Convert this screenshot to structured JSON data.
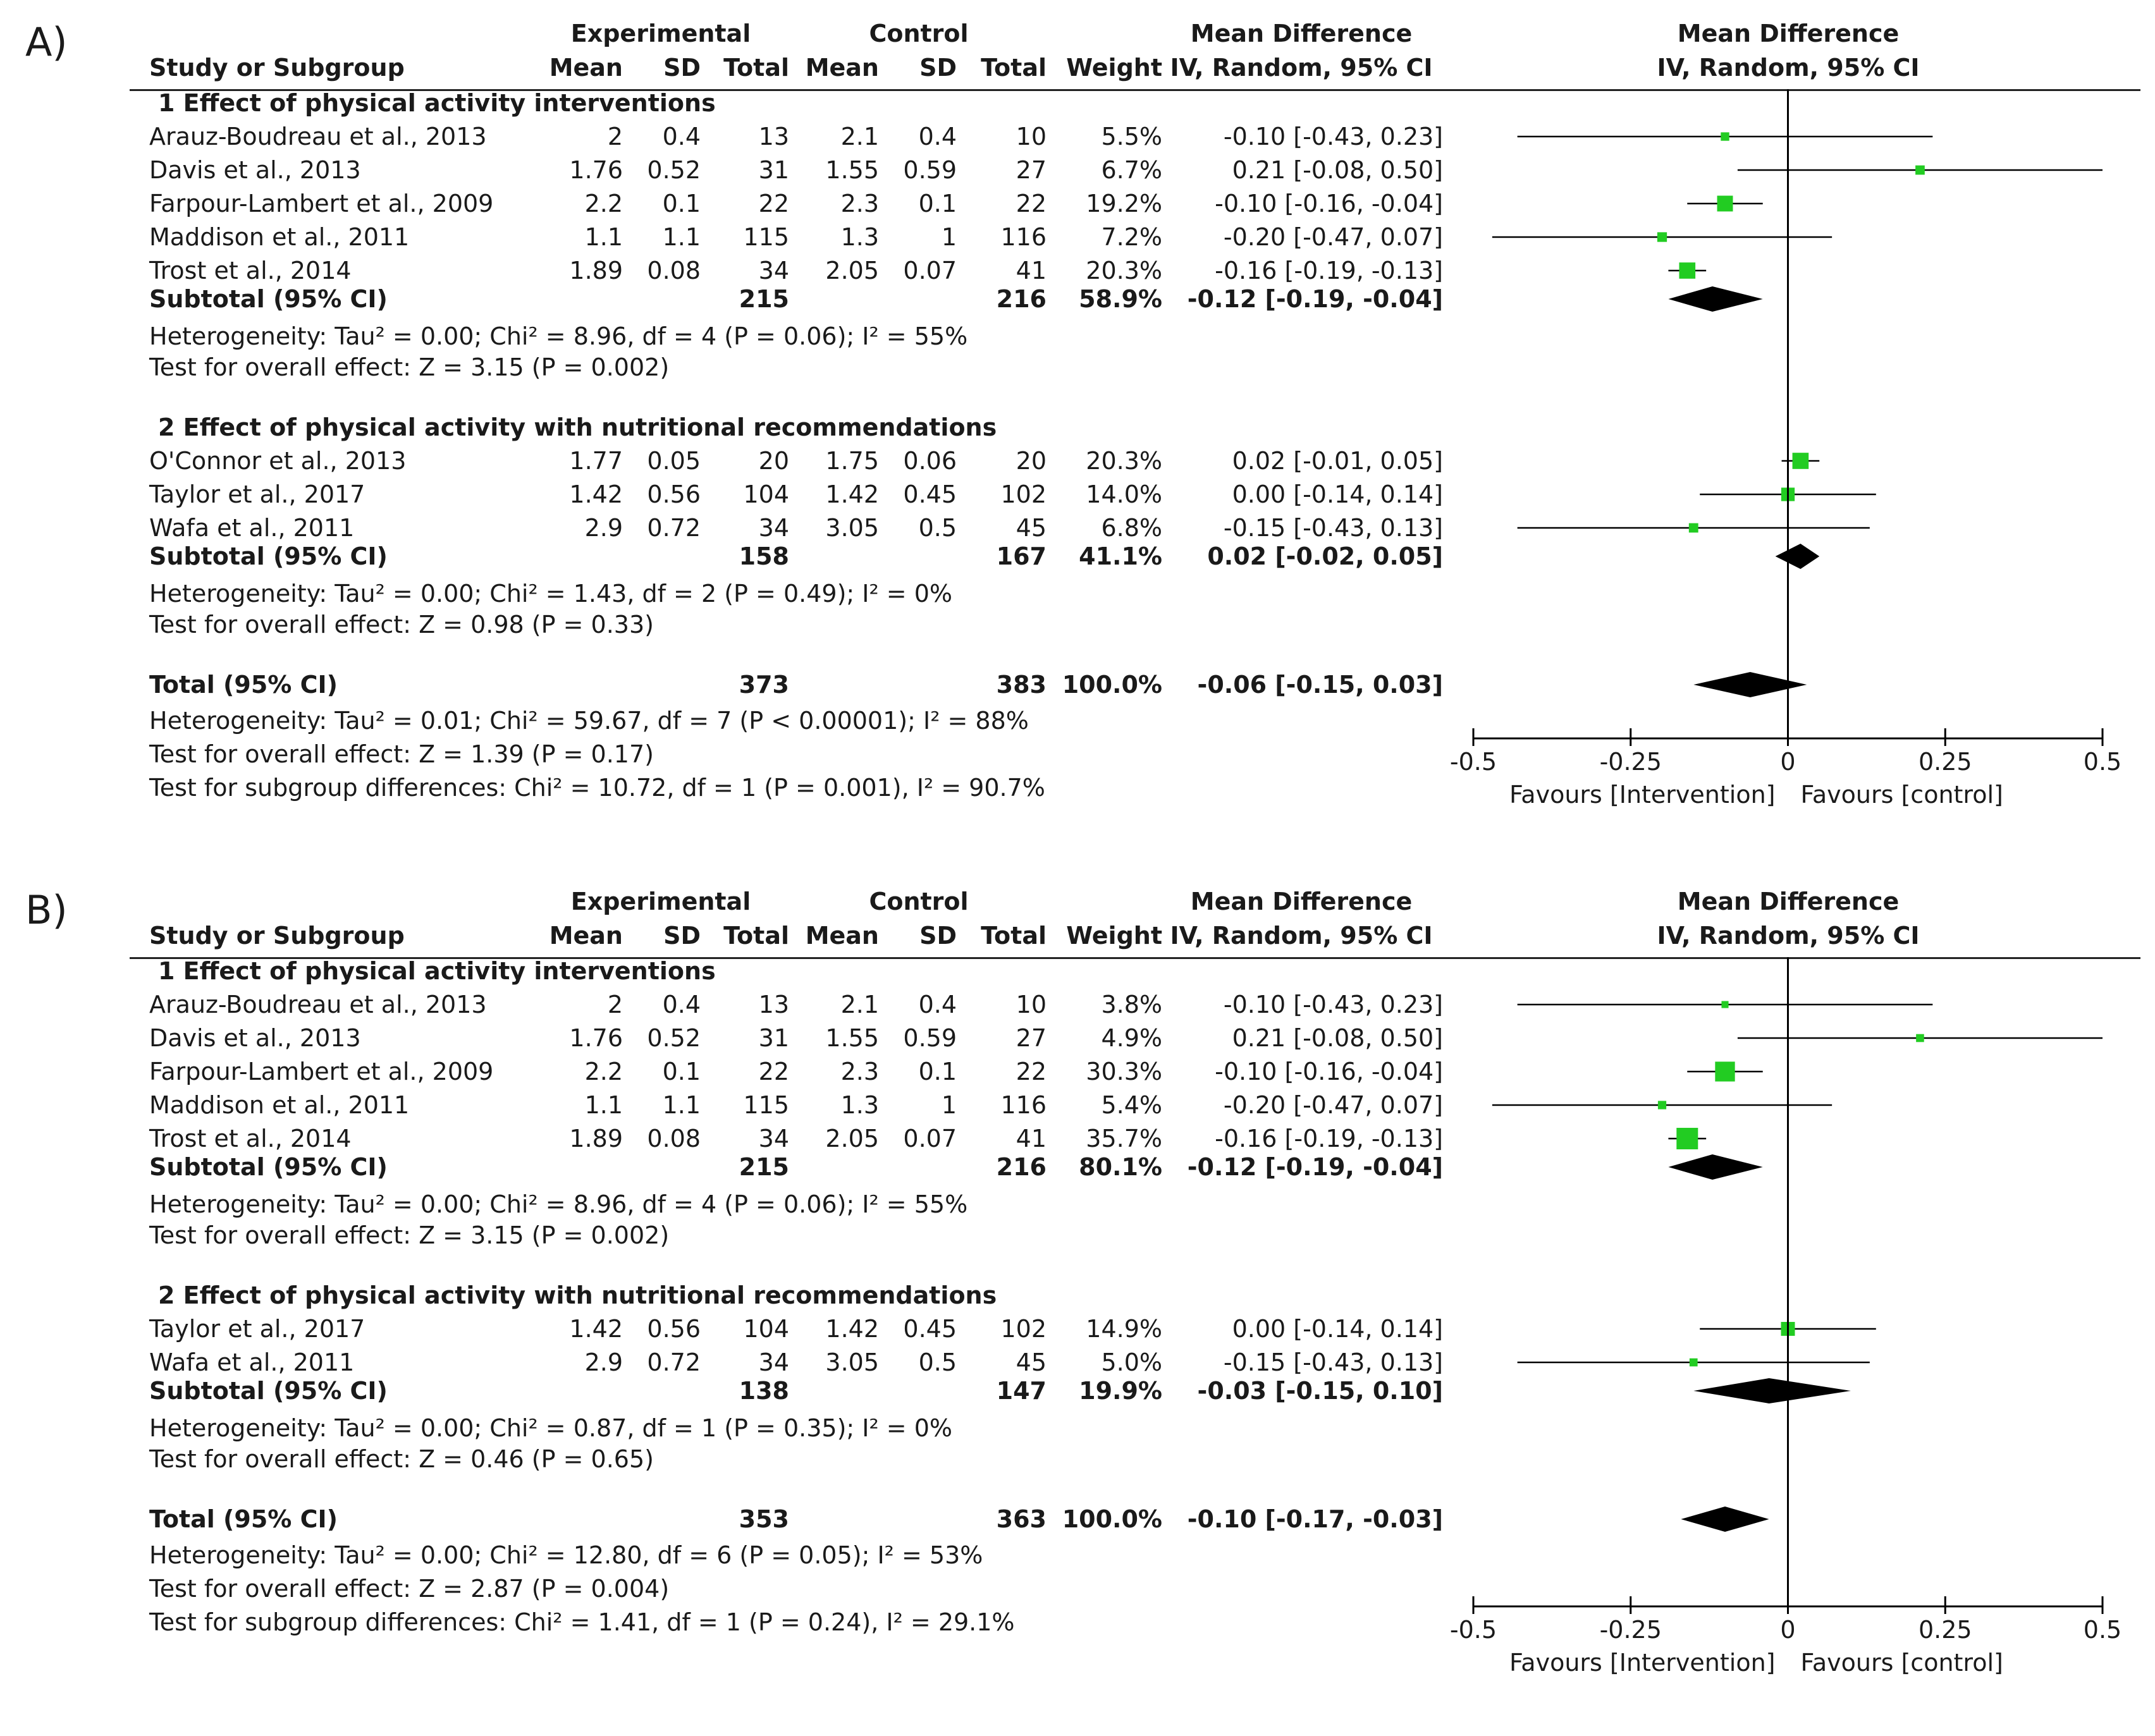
{
  "headers": {
    "study": "Study or Subgroup",
    "experimental": "Experimental",
    "control": "Control",
    "mean": "Mean",
    "sd": "SD",
    "total": "Total",
    "weight": "Weight",
    "md": "Mean Difference",
    "md_method": "IV, Random, 95% CI"
  },
  "colors": {
    "marker": "#22cc22",
    "diamond": "#000000",
    "ci": "#000000"
  },
  "chart_data": [
    {
      "type": "forest",
      "panel_label": "A)",
      "x_axis": {
        "min": -0.5,
        "max": 0.5,
        "ticks": [
          -0.5,
          -0.25,
          0,
          0.25,
          0.5
        ],
        "tick_labels": [
          "-0.5",
          "-0.25",
          "0",
          "0.25",
          "0.5"
        ],
        "left_label": "Favours [Intervention]",
        "right_label": "Favours [control]"
      },
      "subgroups": [
        {
          "title": "1 Effect of physical activity interventions",
          "studies": [
            {
              "name": "Arauz-Boudreau et al., 2013",
              "exp_mean": "2",
              "exp_sd": "0.4",
              "exp_total": "13",
              "ctl_mean": "2.1",
              "ctl_sd": "0.4",
              "ctl_total": "10",
              "weight": "5.5%",
              "ci_text": "-0.10 [-0.43, 0.23]",
              "md": -0.1,
              "lo": -0.43,
              "hi": 0.23,
              "w": 5.5
            },
            {
              "name": "Davis et al., 2013",
              "exp_mean": "1.76",
              "exp_sd": "0.52",
              "exp_total": "31",
              "ctl_mean": "1.55",
              "ctl_sd": "0.59",
              "ctl_total": "27",
              "weight": "6.7%",
              "ci_text": "0.21 [-0.08, 0.50]",
              "md": 0.21,
              "lo": -0.08,
              "hi": 0.5,
              "w": 6.7
            },
            {
              "name": "Farpour-Lambert et al., 2009",
              "exp_mean": "2.2",
              "exp_sd": "0.1",
              "exp_total": "22",
              "ctl_mean": "2.3",
              "ctl_sd": "0.1",
              "ctl_total": "22",
              "weight": "19.2%",
              "ci_text": "-0.10 [-0.16, -0.04]",
              "md": -0.1,
              "lo": -0.16,
              "hi": -0.04,
              "w": 19.2
            },
            {
              "name": "Maddison et al., 2011",
              "exp_mean": "1.1",
              "exp_sd": "1.1",
              "exp_total": "115",
              "ctl_mean": "1.3",
              "ctl_sd": "1",
              "ctl_total": "116",
              "weight": "7.2%",
              "ci_text": "-0.20 [-0.47, 0.07]",
              "md": -0.2,
              "lo": -0.47,
              "hi": 0.07,
              "w": 7.2
            },
            {
              "name": "Trost et al., 2014",
              "exp_mean": "1.89",
              "exp_sd": "0.08",
              "exp_total": "34",
              "ctl_mean": "2.05",
              "ctl_sd": "0.07",
              "ctl_total": "41",
              "weight": "20.3%",
              "ci_text": "-0.16 [-0.19, -0.13]",
              "md": -0.16,
              "lo": -0.19,
              "hi": -0.13,
              "w": 20.3
            }
          ],
          "subtotal": {
            "label": "Subtotal (95% CI)",
            "exp_total": "215",
            "ctl_total": "216",
            "weight": "58.9%",
            "ci_text": "-0.12 [-0.19, -0.04]",
            "md": -0.12,
            "lo": -0.19,
            "hi": -0.04
          },
          "heterogeneity": "Heterogeneity: Tau² = 0.00; Chi² = 8.96, df = 4 (P = 0.06); I² = 55%",
          "overall_effect": "Test for overall effect: Z = 3.15 (P = 0.002)"
        },
        {
          "title": "2 Effect of physical activity with nutritional recommendations",
          "studies": [
            {
              "name": "O'Connor et al., 2013",
              "exp_mean": "1.77",
              "exp_sd": "0.05",
              "exp_total": "20",
              "ctl_mean": "1.75",
              "ctl_sd": "0.06",
              "ctl_total": "20",
              "weight": "20.3%",
              "ci_text": "0.02 [-0.01, 0.05]",
              "md": 0.02,
              "lo": -0.01,
              "hi": 0.05,
              "w": 20.3
            },
            {
              "name": "Taylor et al., 2017",
              "exp_mean": "1.42",
              "exp_sd": "0.56",
              "exp_total": "104",
              "ctl_mean": "1.42",
              "ctl_sd": "0.45",
              "ctl_total": "102",
              "weight": "14.0%",
              "ci_text": "0.00 [-0.14, 0.14]",
              "md": 0.0,
              "lo": -0.14,
              "hi": 0.14,
              "w": 14.0
            },
            {
              "name": "Wafa et al., 2011",
              "exp_mean": "2.9",
              "exp_sd": "0.72",
              "exp_total": "34",
              "ctl_mean": "3.05",
              "ctl_sd": "0.5",
              "ctl_total": "45",
              "weight": "6.8%",
              "ci_text": "-0.15 [-0.43, 0.13]",
              "md": -0.15,
              "lo": -0.43,
              "hi": 0.13,
              "w": 6.8
            }
          ],
          "subtotal": {
            "label": "Subtotal (95% CI)",
            "exp_total": "158",
            "ctl_total": "167",
            "weight": "41.1%",
            "ci_text": "0.02 [-0.02, 0.05]",
            "md": 0.02,
            "lo": -0.02,
            "hi": 0.05
          },
          "heterogeneity": "Heterogeneity: Tau² = 0.00; Chi² = 1.43, df = 2 (P = 0.49); I² = 0%",
          "overall_effect": "Test for overall effect: Z = 0.98 (P = 0.33)"
        }
      ],
      "total": {
        "label": "Total (95% CI)",
        "exp_total": "373",
        "ctl_total": "383",
        "weight": "100.0%",
        "ci_text": "-0.06 [-0.15, 0.03]",
        "md": -0.06,
        "lo": -0.15,
        "hi": 0.03
      },
      "footer": [
        "Heterogeneity: Tau² = 0.01; Chi² = 59.67, df = 7 (P < 0.00001); I² = 88%",
        "Test for overall effect: Z = 1.39 (P = 0.17)",
        "Test for subgroup differences: Chi² = 10.72, df = 1 (P = 0.001), I² = 90.7%"
      ]
    },
    {
      "type": "forest",
      "panel_label": "B)",
      "x_axis": {
        "min": -0.5,
        "max": 0.5,
        "ticks": [
          -0.5,
          -0.25,
          0,
          0.25,
          0.5
        ],
        "tick_labels": [
          "-0.5",
          "-0.25",
          "0",
          "0.25",
          "0.5"
        ],
        "left_label": "Favours [Intervention]",
        "right_label": "Favours [control]"
      },
      "subgroups": [
        {
          "title": "1 Effect of physical activity interventions",
          "studies": [
            {
              "name": "Arauz-Boudreau et al., 2013",
              "exp_mean": "2",
              "exp_sd": "0.4",
              "exp_total": "13",
              "ctl_mean": "2.1",
              "ctl_sd": "0.4",
              "ctl_total": "10",
              "weight": "3.8%",
              "ci_text": "-0.10 [-0.43, 0.23]",
              "md": -0.1,
              "lo": -0.43,
              "hi": 0.23,
              "w": 3.8
            },
            {
              "name": "Davis et al., 2013",
              "exp_mean": "1.76",
              "exp_sd": "0.52",
              "exp_total": "31",
              "ctl_mean": "1.55",
              "ctl_sd": "0.59",
              "ctl_total": "27",
              "weight": "4.9%",
              "ci_text": "0.21 [-0.08, 0.50]",
              "md": 0.21,
              "lo": -0.08,
              "hi": 0.5,
              "w": 4.9
            },
            {
              "name": "Farpour-Lambert et al., 2009",
              "exp_mean": "2.2",
              "exp_sd": "0.1",
              "exp_total": "22",
              "ctl_mean": "2.3",
              "ctl_sd": "0.1",
              "ctl_total": "22",
              "weight": "30.3%",
              "ci_text": "-0.10 [-0.16, -0.04]",
              "md": -0.1,
              "lo": -0.16,
              "hi": -0.04,
              "w": 30.3
            },
            {
              "name": "Maddison et al., 2011",
              "exp_mean": "1.1",
              "exp_sd": "1.1",
              "exp_total": "115",
              "ctl_mean": "1.3",
              "ctl_sd": "1",
              "ctl_total": "116",
              "weight": "5.4%",
              "ci_text": "-0.20 [-0.47, 0.07]",
              "md": -0.2,
              "lo": -0.47,
              "hi": 0.07,
              "w": 5.4
            },
            {
              "name": "Trost et al., 2014",
              "exp_mean": "1.89",
              "exp_sd": "0.08",
              "exp_total": "34",
              "ctl_mean": "2.05",
              "ctl_sd": "0.07",
              "ctl_total": "41",
              "weight": "35.7%",
              "ci_text": "-0.16 [-0.19, -0.13]",
              "md": -0.16,
              "lo": -0.19,
              "hi": -0.13,
              "w": 35.7
            }
          ],
          "subtotal": {
            "label": "Subtotal (95% CI)",
            "exp_total": "215",
            "ctl_total": "216",
            "weight": "80.1%",
            "ci_text": "-0.12 [-0.19, -0.04]",
            "md": -0.12,
            "lo": -0.19,
            "hi": -0.04
          },
          "heterogeneity": "Heterogeneity: Tau² = 0.00; Chi² = 8.96, df = 4 (P = 0.06); I² = 55%",
          "overall_effect": "Test for overall effect: Z = 3.15 (P = 0.002)"
        },
        {
          "title": "2 Effect of physical activity with nutritional recommendations",
          "studies": [
            {
              "name": "Taylor et al., 2017",
              "exp_mean": "1.42",
              "exp_sd": "0.56",
              "exp_total": "104",
              "ctl_mean": "1.42",
              "ctl_sd": "0.45",
              "ctl_total": "102",
              "weight": "14.9%",
              "ci_text": "0.00 [-0.14, 0.14]",
              "md": 0.0,
              "lo": -0.14,
              "hi": 0.14,
              "w": 14.9
            },
            {
              "name": "Wafa et al., 2011",
              "exp_mean": "2.9",
              "exp_sd": "0.72",
              "exp_total": "34",
              "ctl_mean": "3.05",
              "ctl_sd": "0.5",
              "ctl_total": "45",
              "weight": "5.0%",
              "ci_text": "-0.15 [-0.43, 0.13]",
              "md": -0.15,
              "lo": -0.43,
              "hi": 0.13,
              "w": 5.0
            }
          ],
          "subtotal": {
            "label": "Subtotal (95% CI)",
            "exp_total": "138",
            "ctl_total": "147",
            "weight": "19.9%",
            "ci_text": "-0.03 [-0.15, 0.10]",
            "md": -0.03,
            "lo": -0.15,
            "hi": 0.1
          },
          "heterogeneity": "Heterogeneity: Tau² = 0.00; Chi² = 0.87, df = 1 (P = 0.35); I² = 0%",
          "overall_effect": "Test for overall effect: Z = 0.46 (P = 0.65)"
        }
      ],
      "total": {
        "label": "Total (95% CI)",
        "exp_total": "353",
        "ctl_total": "363",
        "weight": "100.0%",
        "ci_text": "-0.10 [-0.17, -0.03]",
        "md": -0.1,
        "lo": -0.17,
        "hi": -0.03
      },
      "footer": [
        "Heterogeneity: Tau² = 0.00; Chi² = 12.80, df = 6 (P = 0.05); I² = 53%",
        "Test for overall effect: Z = 2.87 (P = 0.004)",
        "Test for subgroup differences: Chi² = 1.41, df = 1 (P = 0.24), I² = 29.1%"
      ]
    }
  ]
}
